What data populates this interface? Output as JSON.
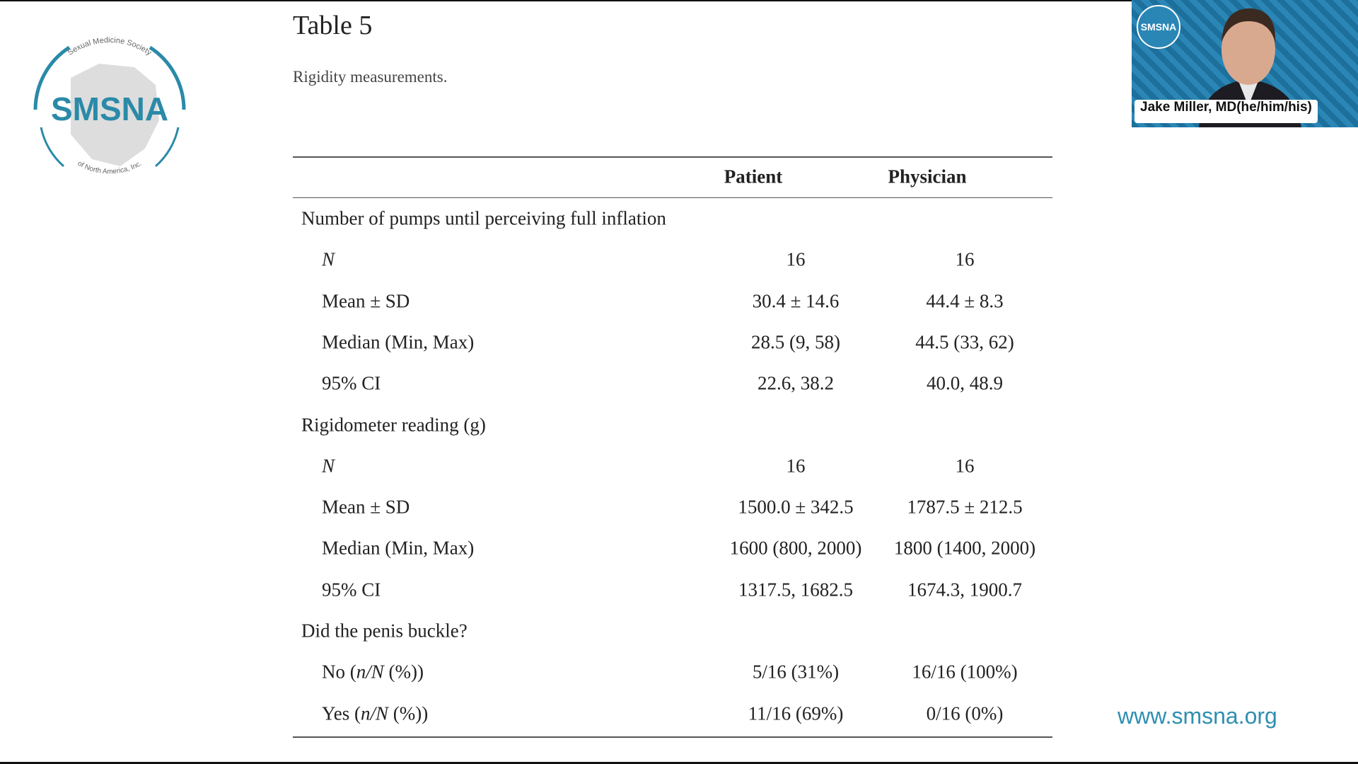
{
  "logo": {
    "name": "SMSNA",
    "arc_top": "Sexual Medicine Society",
    "arc_bottom": "of North America, Inc."
  },
  "table": {
    "title": "Table 5",
    "caption": "Rigidity measurements.",
    "columns": [
      "Patient",
      "Physician"
    ],
    "sections": [
      {
        "heading": "Number of pumps until perceiving full inflation",
        "rows": [
          {
            "label": [
              {
                "i": "N"
              }
            ],
            "cells": [
              "16",
              "16"
            ]
          },
          {
            "label": [
              "Mean ± SD"
            ],
            "cells": [
              "30.4 ± 14.6",
              "44.4 ± 8.3"
            ]
          },
          {
            "label": [
              "Median (Min, Max)"
            ],
            "cells": [
              "28.5 (9, 58)",
              "44.5 (33, 62)"
            ]
          },
          {
            "label": [
              "95% CI"
            ],
            "cells": [
              "22.6, 38.2",
              "40.0, 48.9"
            ]
          }
        ]
      },
      {
        "heading": "Rigidometer reading (g)",
        "rows": [
          {
            "label": [
              {
                "i": "N"
              }
            ],
            "cells": [
              "16",
              "16"
            ]
          },
          {
            "label": [
              "Mean ± SD"
            ],
            "cells": [
              "1500.0 ± 342.5",
              "1787.5 ± 212.5"
            ]
          },
          {
            "label": [
              "Median (Min, Max)"
            ],
            "cells": [
              "1600 (800, 2000)",
              "1800 (1400, 2000)"
            ]
          },
          {
            "label": [
              "95% CI"
            ],
            "cells": [
              "1317.5, 1682.5",
              "1674.3, 1900.7"
            ]
          }
        ]
      },
      {
        "heading": "Did the penis buckle?",
        "rows": [
          {
            "label": [
              "No (",
              {
                "i": "n/N"
              },
              " (%))"
            ],
            "cells": [
              "5/16 (31%)",
              "16/16 (100%)"
            ]
          },
          {
            "label": [
              "Yes (",
              {
                "i": "n/N"
              },
              " (%))"
            ],
            "cells": [
              "11/16 (69%)",
              "0/16 (0%)"
            ]
          }
        ]
      }
    ]
  },
  "video": {
    "badge": "SMSNA",
    "name": "Jake Miller, MD(he/him/his)"
  },
  "url": "www.smsna.org"
}
